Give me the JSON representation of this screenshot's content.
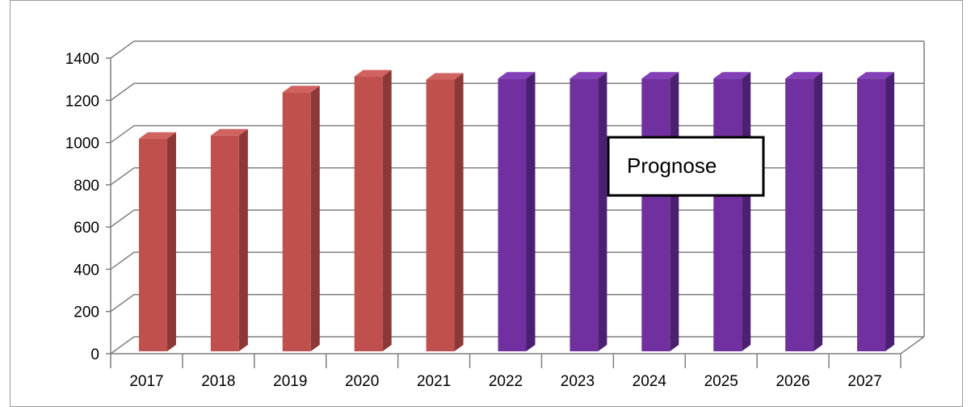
{
  "chart_data": {
    "type": "bar",
    "title": "",
    "xlabel": "",
    "ylabel": "",
    "categories": [
      "2017",
      "2018",
      "2019",
      "2020",
      "2021",
      "2022",
      "2023",
      "2024",
      "2025",
      "2026",
      "2027"
    ],
    "values": [
      1030,
      1045,
      1250,
      1325,
      1310,
      1315,
      1315,
      1315,
      1315,
      1315,
      1315
    ],
    "ylim": [
      0,
      1400
    ],
    "yticks": [
      "0",
      "200",
      "400",
      "600",
      "800",
      "1000",
      "1200",
      "1400"
    ],
    "grid": true,
    "legend": "none",
    "bar_style": "3d",
    "colors": {
      "actual_front": "#c0504d",
      "actual_side": "#8c3836",
      "actual_top": "#d0625f",
      "forecast_front": "#7030a0",
      "forecast_side": "#4c2070",
      "forecast_top": "#8340b8"
    },
    "forecast_start_index": 5,
    "annotation": {
      "text": "Prognose"
    }
  }
}
